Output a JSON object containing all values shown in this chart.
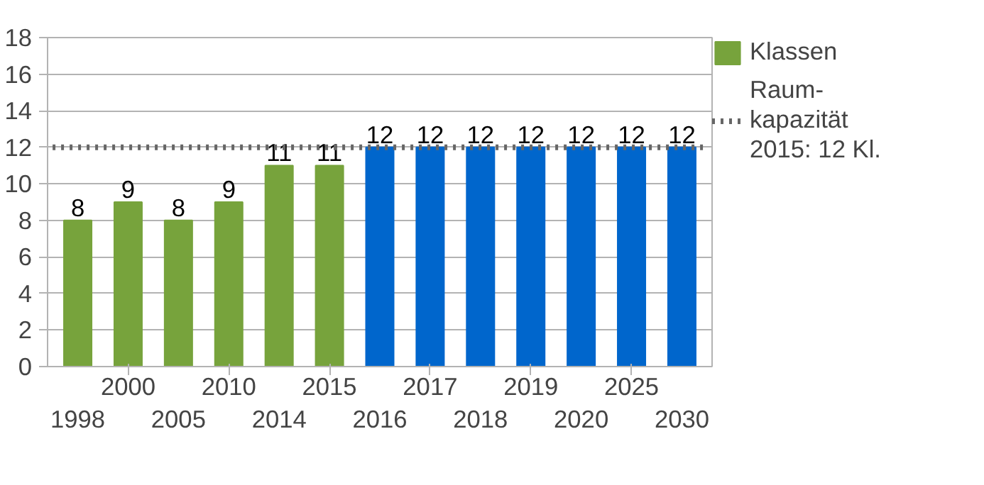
{
  "chart_data": {
    "type": "bar",
    "categories": [
      "1998",
      "2000",
      "2005",
      "2010",
      "2014",
      "2015",
      "2016",
      "2017",
      "2018",
      "2019",
      "2020",
      "2025",
      "2030"
    ],
    "series": [
      {
        "name": "Klassen",
        "color": "#77a33c",
        "colors": [
          null,
          null,
          null,
          null,
          null,
          null,
          "#0066cc",
          "#0066cc",
          "#0066cc",
          "#0066cc",
          "#0066cc",
          "#0066cc",
          "#0066cc"
        ],
        "values": [
          8,
          9,
          8,
          9,
          11,
          11,
          12,
          12,
          12,
          12,
          12,
          12,
          12
        ]
      }
    ],
    "data_labels": true,
    "ylim": [
      0,
      18
    ],
    "yticks": [
      0,
      2,
      4,
      6,
      8,
      10,
      12,
      14,
      16,
      18
    ],
    "grid": "y",
    "legend": "right",
    "ref_lines": [
      {
        "axis": "y",
        "value": 12,
        "label": "Raum-\nkapazität\n2015: 12 Kl.",
        "color": "#666666",
        "line_style": "dotted"
      }
    ]
  }
}
